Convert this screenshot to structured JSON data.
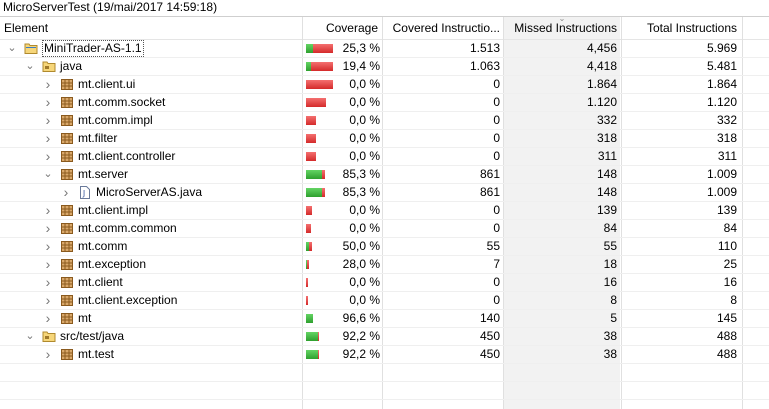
{
  "title": "MicroServerTest (19/mai/2017 14:59:18)",
  "columns": {
    "element": "Element",
    "coverage": "Coverage",
    "covered": "Covered Instructio...",
    "missed": "Missed Instructions",
    "total": "Total Instructions"
  },
  "sorted_column": "missed",
  "rows": [
    {
      "depth": 0,
      "twisty": "open",
      "icon": "project-folder-icon",
      "name": "MiniTrader-AS-1.1",
      "coverage": "25,3 %",
      "cov_fraction": 0.253,
      "covered": "1.513",
      "missed": "4,456",
      "total": "5.969",
      "selected": true
    },
    {
      "depth": 1,
      "twisty": "open",
      "icon": "source-folder-icon",
      "name": "java",
      "coverage": "19,4 %",
      "cov_fraction": 0.194,
      "covered": "1.063",
      "missed": "4,418",
      "total": "5.481"
    },
    {
      "depth": 2,
      "twisty": "closed",
      "icon": "package-icon",
      "name": "mt.client.ui",
      "coverage": "0,0 %",
      "cov_fraction": 0.0,
      "covered": "0",
      "missed": "1.864",
      "total": "1.864"
    },
    {
      "depth": 2,
      "twisty": "closed",
      "icon": "package-icon",
      "name": "mt.comm.socket",
      "coverage": "0,0 %",
      "cov_fraction": 0.0,
      "covered": "0",
      "missed": "1.120",
      "total": "1.120"
    },
    {
      "depth": 2,
      "twisty": "closed",
      "icon": "package-icon",
      "name": "mt.comm.impl",
      "coverage": "0,0 %",
      "cov_fraction": 0.0,
      "covered": "0",
      "missed": "332",
      "total": "332"
    },
    {
      "depth": 2,
      "twisty": "closed",
      "icon": "package-icon",
      "name": "mt.filter",
      "coverage": "0,0 %",
      "cov_fraction": 0.0,
      "covered": "0",
      "missed": "318",
      "total": "318"
    },
    {
      "depth": 2,
      "twisty": "closed",
      "icon": "package-icon",
      "name": "mt.client.controller",
      "coverage": "0,0 %",
      "cov_fraction": 0.0,
      "covered": "0",
      "missed": "311",
      "total": "311"
    },
    {
      "depth": 2,
      "twisty": "open",
      "icon": "package-icon",
      "name": "mt.server",
      "coverage": "85,3 %",
      "cov_fraction": 0.853,
      "covered": "861",
      "missed": "148",
      "total": "1.009"
    },
    {
      "depth": 3,
      "twisty": "closed",
      "icon": "java-file-icon",
      "name": "MicroServerAS.java",
      "coverage": "85,3 %",
      "cov_fraction": 0.853,
      "covered": "861",
      "missed": "148",
      "total": "1.009"
    },
    {
      "depth": 2,
      "twisty": "closed",
      "icon": "package-icon",
      "name": "mt.client.impl",
      "coverage": "0,0 %",
      "cov_fraction": 0.0,
      "covered": "0",
      "missed": "139",
      "total": "139"
    },
    {
      "depth": 2,
      "twisty": "closed",
      "icon": "package-icon",
      "name": "mt.comm.common",
      "coverage": "0,0 %",
      "cov_fraction": 0.0,
      "covered": "0",
      "missed": "84",
      "total": "84"
    },
    {
      "depth": 2,
      "twisty": "closed",
      "icon": "package-icon",
      "name": "mt.comm",
      "coverage": "50,0 %",
      "cov_fraction": 0.5,
      "covered": "55",
      "missed": "55",
      "total": "110"
    },
    {
      "depth": 2,
      "twisty": "closed",
      "icon": "package-icon",
      "name": "mt.exception",
      "coverage": "28,0 %",
      "cov_fraction": 0.28,
      "covered": "7",
      "missed": "18",
      "total": "25"
    },
    {
      "depth": 2,
      "twisty": "closed",
      "icon": "package-icon",
      "name": "mt.client",
      "coverage": "0,0 %",
      "cov_fraction": 0.0,
      "covered": "0",
      "missed": "16",
      "total": "16"
    },
    {
      "depth": 2,
      "twisty": "closed",
      "icon": "package-icon",
      "name": "mt.client.exception",
      "coverage": "0,0 %",
      "cov_fraction": 0.0,
      "covered": "0",
      "missed": "8",
      "total": "8"
    },
    {
      "depth": 2,
      "twisty": "closed",
      "icon": "package-icon",
      "name": "mt",
      "coverage": "96,6 %",
      "cov_fraction": 0.966,
      "covered": "140",
      "missed": "5",
      "total": "145"
    },
    {
      "depth": 1,
      "twisty": "open",
      "icon": "source-folder-icon",
      "name": "src/test/java",
      "coverage": "92,2 %",
      "cov_fraction": 0.922,
      "covered": "450",
      "missed": "38",
      "total": "488"
    },
    {
      "depth": 2,
      "twisty": "closed",
      "icon": "package-icon",
      "name": "mt.test",
      "coverage": "92,2 %",
      "cov_fraction": 0.922,
      "covered": "450",
      "missed": "38",
      "total": "488"
    }
  ],
  "colors": {
    "covered": "#2ea02e",
    "missed": "#d42a2a",
    "sorted_bg": "#f2f2f2"
  }
}
